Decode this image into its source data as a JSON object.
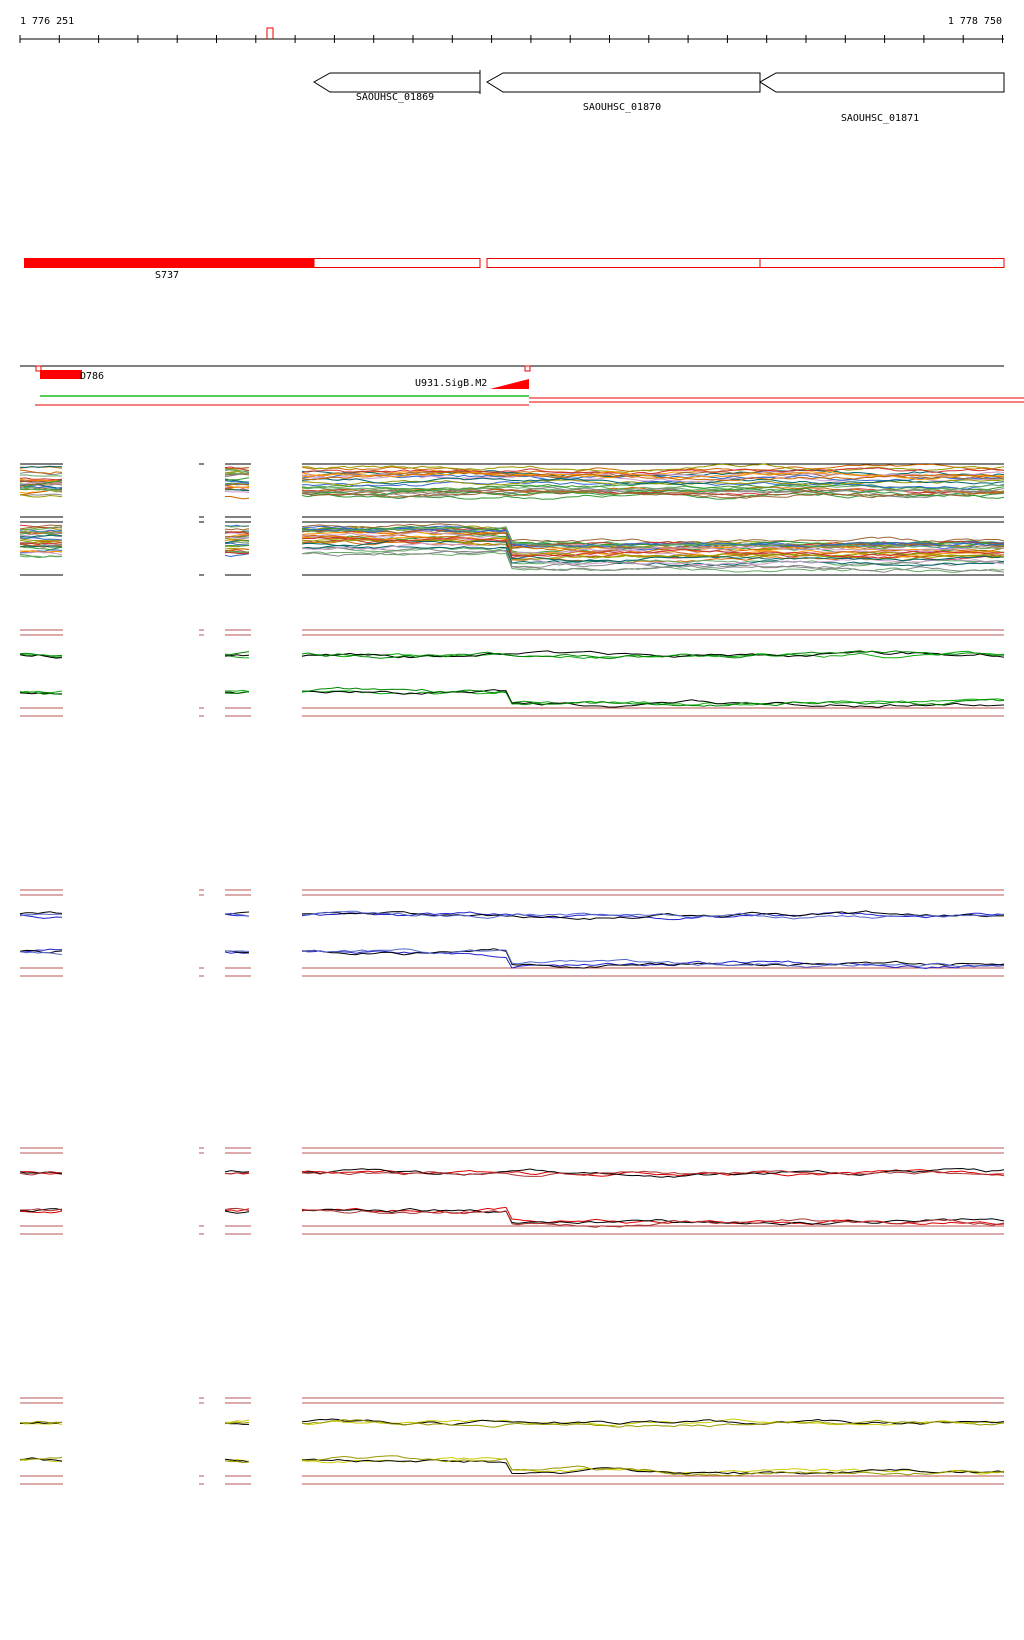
{
  "ruler": {
    "start": "1 776 251",
    "end": "1 778 750"
  },
  "genes": [
    {
      "label": "SAOUHSC_01869"
    },
    {
      "label": "SAOUHSC_01870"
    },
    {
      "label": "SAOUHSC_01871"
    }
  ],
  "segments": [
    {
      "label": "S737"
    }
  ],
  "features": [
    {
      "label": "D786"
    },
    {
      "label": "U931.SigB.M2"
    }
  ]
}
